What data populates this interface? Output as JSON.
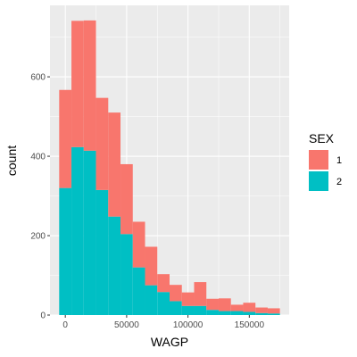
{
  "chart_data": {
    "type": "bar",
    "subtype": "stacked-histogram",
    "xlabel": "WAGP",
    "ylabel": "count",
    "xlim": [
      -12500,
      182500
    ],
    "ylim": [
      0,
      780
    ],
    "x_ticks": [
      {
        "value": 0,
        "label": "0"
      },
      {
        "value": 50000,
        "label": "50000"
      },
      {
        "value": 100000,
        "label": "100000"
      },
      {
        "value": 150000,
        "label": "150000"
      }
    ],
    "y_ticks": [
      {
        "value": 0,
        "label": "0"
      },
      {
        "value": 200,
        "label": "200"
      },
      {
        "value": 400,
        "label": "400"
      },
      {
        "value": 600,
        "label": "600"
      }
    ],
    "bin_width": 10000,
    "bin_centers": [
      0,
      10000,
      20000,
      30000,
      40000,
      50000,
      60000,
      70000,
      80000,
      90000,
      100000,
      110000,
      120000,
      130000,
      140000,
      150000,
      160000,
      170000
    ],
    "series": [
      {
        "name": "2",
        "color": "#00BFC4",
        "values": [
          320,
          423,
          414,
          315,
          248,
          204,
          120,
          75,
          58,
          35,
          23,
          23,
          13,
          10,
          10,
          8,
          5,
          4
        ]
      },
      {
        "name": "1",
        "color": "#F8766D",
        "values": [
          247,
          318,
          328,
          232,
          262,
          176,
          115,
          97,
          45,
          41,
          34,
          60,
          28,
          32,
          16,
          23,
          14,
          13
        ]
      }
    ],
    "legend": {
      "title": "SEX",
      "position": "right",
      "items": [
        {
          "label": "1",
          "color": "#F8766D"
        },
        {
          "label": "2",
          "color": "#00BFC4"
        }
      ]
    },
    "panel_background": "#EBEBEB",
    "grid": true
  }
}
